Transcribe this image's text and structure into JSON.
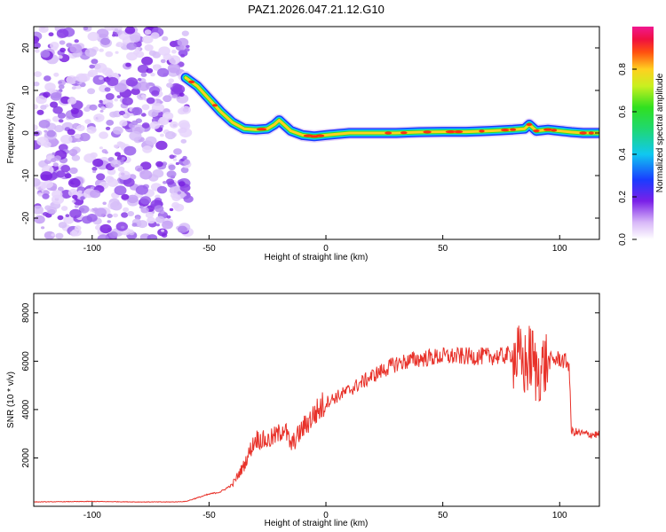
{
  "title": "PAZ1.2026.047.21.12.G10",
  "chart_data": [
    {
      "type": "heatmap",
      "title": "PAZ1.2026.047.21.12.G10",
      "xlabel": "Height of straight line (km)",
      "ylabel": "Frequency (Hz)",
      "xlim": [
        -125,
        117
      ],
      "ylim": [
        -25,
        25
      ],
      "xticks": [
        "-100",
        "-50",
        "0",
        "50",
        "100"
      ],
      "yticks": [
        "-20",
        "-10",
        "0",
        "10",
        "20"
      ],
      "noise_region_x": [
        -125,
        -60
      ],
      "ridge": {
        "x": [
          -60,
          -55,
          -50,
          -45,
          -40,
          -35,
          -30,
          -25,
          -22,
          -20,
          -18,
          -15,
          -10,
          -5,
          0,
          10,
          20,
          30,
          40,
          50,
          60,
          70,
          80,
          85,
          87,
          90,
          95,
          100,
          105,
          110,
          117
        ],
        "y": [
          13,
          11,
          8,
          5,
          2.5,
          1,
          0.8,
          1,
          2,
          3,
          2,
          0.5,
          -0.5,
          -0.8,
          -0.5,
          0,
          0,
          0,
          0.2,
          0.3,
          0.3,
          0.5,
          0.8,
          1,
          2,
          0.5,
          0.8,
          0.5,
          0.2,
          0,
          0
        ]
      },
      "colorbar": {
        "label": "Normalized spectral amplitude",
        "range": [
          0,
          1
        ],
        "ticks": [
          "0.0",
          "0.2",
          "0.4",
          "0.6",
          "0.8"
        ]
      }
    },
    {
      "type": "line",
      "xlabel": "Height of straight line (km)",
      "ylabel": "SNR (10 * v/v)",
      "xlim": [
        -125,
        117
      ],
      "ylim": [
        0,
        8800
      ],
      "xticks": [
        "-100",
        "-50",
        "0",
        "50",
        "100"
      ],
      "yticks": [
        "2000",
        "4000",
        "6000",
        "8000"
      ],
      "color": "#e8322a",
      "series": [
        {
          "name": "SNR",
          "x": [
            -125,
            -100,
            -80,
            -65,
            -60,
            -55,
            -50,
            -45,
            -40,
            -35,
            -32,
            -30,
            -25,
            -20,
            -18,
            -15,
            -10,
            -5,
            0,
            10,
            20,
            30,
            40,
            50,
            60,
            70,
            75,
            80,
            85,
            88,
            90,
            95,
            100,
            104,
            105,
            110,
            117
          ],
          "y": [
            180,
            200,
            180,
            180,
            200,
            350,
            500,
            600,
            900,
            1700,
            2400,
            2800,
            2700,
            3000,
            3300,
            2500,
            3200,
            3800,
            4300,
            4800,
            5400,
            5900,
            6100,
            6200,
            6200,
            6200,
            6200,
            6300,
            5800,
            6200,
            5500,
            6000,
            6100,
            5900,
            3100,
            3000,
            2950
          ]
        }
      ]
    }
  ]
}
